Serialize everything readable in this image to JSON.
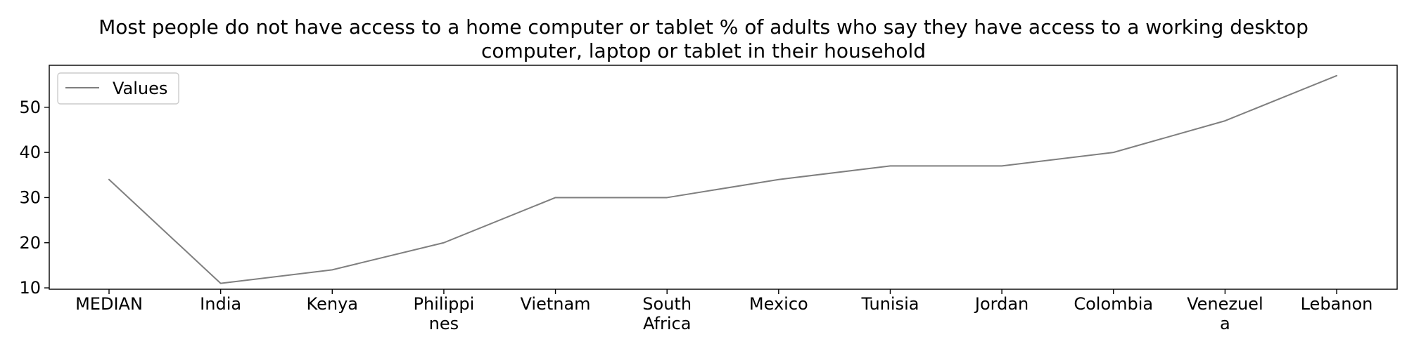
{
  "chart_data": {
    "type": "line",
    "title_lines": [
      "Most people do not have access to a home computer or tablet % of adults who say they have access to a working desktop",
      "computer, laptop or tablet in their household"
    ],
    "xlabel": "",
    "ylabel": "",
    "categories": [
      "MEDIAN",
      "India",
      "Kenya",
      "Philippines",
      "Vietnam",
      "South Africa",
      "Mexico",
      "Tunisia",
      "Jordan",
      "Colombia",
      "Venezuela",
      "Lebanon"
    ],
    "category_label_lines": [
      [
        "MEDIAN"
      ],
      [
        "India"
      ],
      [
        "Kenya"
      ],
      [
        "Philippi",
        "nes"
      ],
      [
        "Vietnam"
      ],
      [
        "South",
        "Africa"
      ],
      [
        "Mexico"
      ],
      [
        "Tunisia"
      ],
      [
        "Jordan"
      ],
      [
        "Colombia"
      ],
      [
        "Venezuel",
        "a"
      ],
      [
        "Lebanon"
      ]
    ],
    "series": [
      {
        "name": "Values",
        "color": "#7f7f7f",
        "values": [
          34,
          11,
          14,
          20,
          30,
          30,
          34,
          37,
          37,
          40,
          47,
          57
        ]
      }
    ],
    "ylim": [
      9.7,
      59.3
    ],
    "yticks": [
      10,
      20,
      30,
      40,
      50
    ],
    "grid": false,
    "legend_position": "top-left"
  }
}
